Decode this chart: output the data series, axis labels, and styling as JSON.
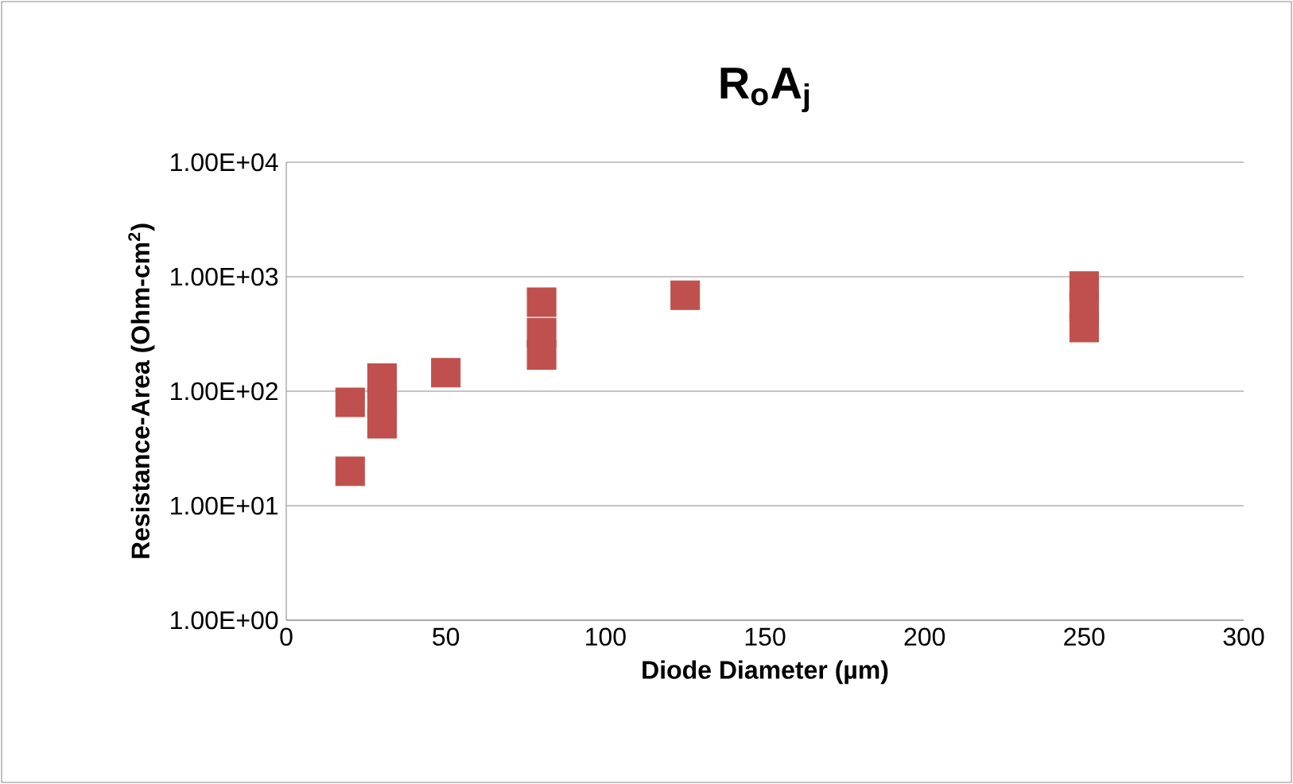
{
  "chart_data": {
    "type": "scatter",
    "title": "R$_{o}$A$_{j}$",
    "xlabel": "Diode Diameter (µm)",
    "ylabel": "Resistance-Area (Ohm-cm$^{2}$)",
    "series": [
      {
        "color": "#c0504d",
        "x": [
          20,
          20,
          30,
          30,
          30,
          50,
          80,
          80,
          80,
          125,
          250,
          250,
          250
        ],
        "values": [
          80,
          20,
          130,
          80,
          52,
          145,
          600,
          325,
          207,
          690,
          830,
          550,
          360
        ]
      }
    ],
    "xlim": [
      0,
      300
    ],
    "xticks": [
      0,
      50,
      100,
      150,
      200,
      250,
      300
    ],
    "ylim": [
      1,
      10000
    ],
    "yticks": [
      {
        "value": 1,
        "label": "1.00E+00"
      },
      {
        "value": 10,
        "label": "1.00E+01"
      },
      {
        "value": 100,
        "label": "1.00E+02"
      },
      {
        "value": 1000,
        "label": "1.00E+03"
      },
      {
        "value": 10000,
        "label": "1.00E+04"
      }
    ],
    "log": "y",
    "grid": "y",
    "marker": "square"
  }
}
